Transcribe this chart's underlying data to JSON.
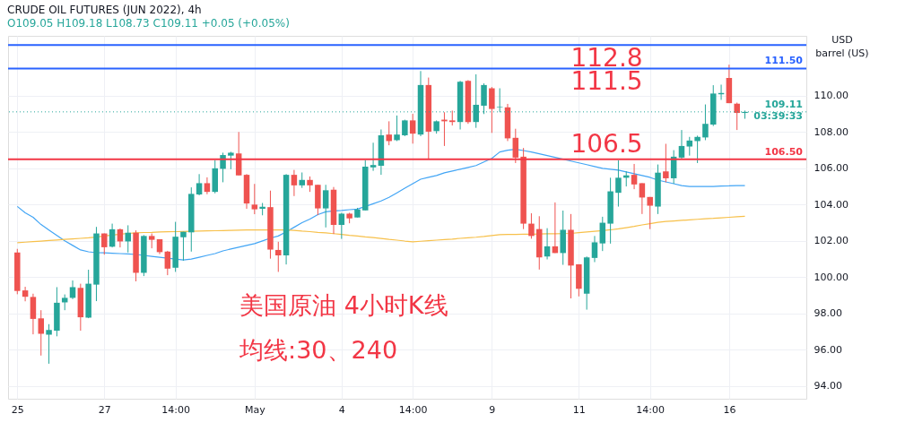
{
  "chart_data": {
    "type": "candlestick",
    "title": "CRUDE OIL FUTURES (JUN 2022), 4h",
    "subtitle": "O109.05 H109.18 L108.73 C109.11 +0.05 (+0.05%)",
    "ylabel": "USD\nbarrel (US)",
    "categories": [
      "25",
      null,
      null,
      null,
      null,
      null,
      null,
      null,
      null,
      null,
      null,
      "27",
      null,
      null,
      null,
      null,
      null,
      null,
      null,
      null,
      "14:00",
      null,
      null,
      null,
      null,
      null,
      null,
      null,
      null,
      null,
      "May",
      null,
      null,
      null,
      null,
      null,
      null,
      null,
      null,
      null,
      null,
      "4",
      null,
      null,
      null,
      null,
      null,
      null,
      null,
      null,
      "14:00",
      null,
      null,
      null,
      null,
      null,
      null,
      null,
      null,
      null,
      "9",
      null,
      null,
      null,
      null,
      null,
      null,
      null,
      null,
      null,
      null,
      "11",
      null,
      null,
      null,
      null,
      null,
      null,
      null,
      null,
      "14:00",
      null,
      null,
      null,
      null,
      null,
      null,
      null,
      null,
      null,
      "16",
      null,
      null
    ],
    "ohlc": [
      [
        101.36,
        101.56,
        99.06,
        99.24
      ],
      [
        99.27,
        99.47,
        98.67,
        98.92
      ],
      [
        98.91,
        99.09,
        96.85,
        97.7
      ],
      [
        97.73,
        98.18,
        95.68,
        96.88
      ],
      [
        96.83,
        97.41,
        95.23,
        97.09
      ],
      [
        97.05,
        99.45,
        96.74,
        98.59
      ],
      [
        98.61,
        99.05,
        98.18,
        98.86
      ],
      [
        98.86,
        99.82,
        98.79,
        99.45
      ],
      [
        99.41,
        99.64,
        97.05,
        97.79
      ],
      [
        97.77,
        100.41,
        97.74,
        99.64
      ],
      [
        99.59,
        102.77,
        98.68,
        102.41
      ],
      [
        102.41,
        102.41,
        101.24,
        101.65
      ],
      [
        101.68,
        102.95,
        101.64,
        102.64
      ],
      [
        102.64,
        102.68,
        101.64,
        101.97
      ],
      [
        101.97,
        102.86,
        101.36,
        102.45
      ],
      [
        102.45,
        102.58,
        99.77,
        100.24
      ],
      [
        100.24,
        102.32,
        100.06,
        102.27
      ],
      [
        102.27,
        102.41,
        101.59,
        102.06
      ],
      [
        102.09,
        102.09,
        101.27,
        101.38
      ],
      [
        101.41,
        101.45,
        100.11,
        100.47
      ],
      [
        100.52,
        103.05,
        100.29,
        102.23
      ],
      [
        102.2,
        102.5,
        100.91,
        102.5
      ],
      [
        102.47,
        104.95,
        101.41,
        104.59
      ],
      [
        104.56,
        105.68,
        104.51,
        105.18
      ],
      [
        105.18,
        105.5,
        104.57,
        104.7
      ],
      [
        104.7,
        106.45,
        104.62,
        106.0
      ],
      [
        105.97,
        106.86,
        105.23,
        106.73
      ],
      [
        106.7,
        106.91,
        105.95,
        106.86
      ],
      [
        106.82,
        108.0,
        105.61,
        105.61
      ],
      [
        105.64,
        105.68,
        103.77,
        104.06
      ],
      [
        104.0,
        105.14,
        103.47,
        103.74
      ],
      [
        103.77,
        104.09,
        103.41,
        103.88
      ],
      [
        103.86,
        104.77,
        101.02,
        101.52
      ],
      [
        101.5,
        101.95,
        100.29,
        101.2
      ],
      [
        101.2,
        105.68,
        100.7,
        105.64
      ],
      [
        105.64,
        105.91,
        104.47,
        105.06
      ],
      [
        105.06,
        105.77,
        104.92,
        105.36
      ],
      [
        105.36,
        105.55,
        104.7,
        105.06
      ],
      [
        105.09,
        105.09,
        103.42,
        103.79
      ],
      [
        103.79,
        105.09,
        102.74,
        104.79
      ],
      [
        104.82,
        104.97,
        102.38,
        102.88
      ],
      [
        102.88,
        103.55,
        102.11,
        103.5
      ],
      [
        103.5,
        103.55,
        102.97,
        103.24
      ],
      [
        103.29,
        103.82,
        103.29,
        103.73
      ],
      [
        103.68,
        106.45,
        103.68,
        106.09
      ],
      [
        106.05,
        107.41,
        105.86,
        106.18
      ],
      [
        106.14,
        108.14,
        105.64,
        107.82
      ],
      [
        107.86,
        108.59,
        107.27,
        107.5
      ],
      [
        107.55,
        108.91,
        107.5,
        107.86
      ],
      [
        107.82,
        108.68,
        107.77,
        108.64
      ],
      [
        108.64,
        109.0,
        107.36,
        107.91
      ],
      [
        107.86,
        111.36,
        107.77,
        110.59
      ],
      [
        110.59,
        111.0,
        106.52,
        108.02
      ],
      [
        108.05,
        108.64,
        107.91,
        108.59
      ],
      [
        108.68,
        109.09,
        107.23,
        108.59
      ],
      [
        108.64,
        109.18,
        108.36,
        108.55
      ],
      [
        108.55,
        110.82,
        108.14,
        110.77
      ],
      [
        110.82,
        110.86,
        108.45,
        108.55
      ],
      [
        108.55,
        111.18,
        108.23,
        109.5
      ],
      [
        109.45,
        110.68,
        108.99,
        110.59
      ],
      [
        110.41,
        110.48,
        107.95,
        109.27
      ],
      [
        109.36,
        110.41,
        109.09,
        109.39
      ],
      [
        109.36,
        109.55,
        107.5,
        107.65
      ],
      [
        107.68,
        108.18,
        106.29,
        106.59
      ],
      [
        106.64,
        107.12,
        102.65,
        102.95
      ],
      [
        102.95,
        103.52,
        102.12,
        102.27
      ],
      [
        102.65,
        103.36,
        100.42,
        101.09
      ],
      [
        101.14,
        102.7,
        100.98,
        101.7
      ],
      [
        101.7,
        104.12,
        101.33,
        101.33
      ],
      [
        101.33,
        103.67,
        100.68,
        102.61
      ],
      [
        102.61,
        103.48,
        98.83,
        100.64
      ],
      [
        100.71,
        100.71,
        98.94,
        99.36
      ],
      [
        99.09,
        101.14,
        98.21,
        101.09
      ],
      [
        101.06,
        102.27,
        100.83,
        101.92
      ],
      [
        101.86,
        103.33,
        101.44,
        103.0
      ],
      [
        102.95,
        105.48,
        101.85,
        104.73
      ],
      [
        104.65,
        106.44,
        103.89,
        105.48
      ],
      [
        105.48,
        105.83,
        105.0,
        105.61
      ],
      [
        105.64,
        106.24,
        104.85,
        105.11
      ],
      [
        105.18,
        105.18,
        103.48,
        104.39
      ],
      [
        104.42,
        104.42,
        102.65,
        103.94
      ],
      [
        103.89,
        106.21,
        103.48,
        105.76
      ],
      [
        105.83,
        107.35,
        105.23,
        105.45
      ],
      [
        105.45,
        107.0,
        105.15,
        106.64
      ],
      [
        106.59,
        108.11,
        106.49,
        107.23
      ],
      [
        107.2,
        107.73,
        106.7,
        107.53
      ],
      [
        107.5,
        107.8,
        106.29,
        107.73
      ],
      [
        107.7,
        109.52,
        107.55,
        108.45
      ],
      [
        108.41,
        110.58,
        108.33,
        110.12
      ],
      [
        110.08,
        110.61,
        109.77,
        110.15
      ],
      [
        110.98,
        111.71,
        109.59,
        109.59
      ],
      [
        109.56,
        109.62,
        108.11,
        109.05
      ],
      [
        109.05,
        109.18,
        108.73,
        109.11
      ]
    ],
    "colors": [
      "#ef5350",
      "#ef5350",
      "#ef5350",
      "#ef5350",
      "#26a69a",
      "#26a69a",
      "#26a69a",
      "#26a69a",
      "#ef5350",
      "#26a69a",
      "#26a69a",
      "#ef5350",
      "#26a69a",
      "#ef5350",
      "#26a69a",
      "#ef5350",
      "#26a69a",
      "#ef5350",
      "#ef5350",
      "#ef5350",
      "#26a69a",
      "#26a69a",
      "#26a69a",
      "#26a69a",
      "#ef5350",
      "#26a69a",
      "#26a69a",
      "#26a69a",
      "#ef5350",
      "#ef5350",
      "#ef5350",
      "#26a69a",
      "#ef5350",
      "#ef5350",
      "#26a69a",
      "#ef5350",
      "#26a69a",
      "#ef5350",
      "#ef5350",
      "#26a69a",
      "#ef5350",
      "#26a69a",
      "#ef5350",
      "#26a69a",
      "#26a69a",
      "#26a69a",
      "#26a69a",
      "#ef5350",
      "#26a69a",
      "#26a69a",
      "#ef5350",
      "#26a69a",
      "#ef5350",
      "#26a69a",
      "#ef5350",
      "#ef5350",
      "#26a69a",
      "#ef5350",
      "#26a69a",
      "#26a69a",
      "#ef5350",
      "#26a69a",
      "#ef5350",
      "#ef5350",
      "#ef5350",
      "#ef5350",
      "#ef5350",
      "#26a69a",
      "#ef5350",
      "#26a69a",
      "#ef5350",
      "#ef5350",
      "#26a69a",
      "#26a69a",
      "#26a69a",
      "#26a69a",
      "#26a69a",
      "#26a69a",
      "#ef5350",
      "#ef5350",
      "#ef5350",
      "#26a69a",
      "#ef5350",
      "#26a69a",
      "#26a69a",
      "#26a69a",
      "#26a69a",
      "#26a69a",
      "#26a69a",
      "#26a69a",
      "#ef5350",
      "#ef5350",
      "#26a69a"
    ],
    "series": [
      {
        "type": "line",
        "color": "#42a5f5",
        "line_style": "solid",
        "values": [
          103.9,
          103.55,
          103.3,
          102.9,
          102.6,
          102.3,
          102.0,
          101.75,
          101.5,
          101.4,
          101.35,
          101.34,
          101.32,
          101.3,
          101.28,
          101.25,
          101.2,
          101.15,
          101.1,
          101.05,
          101.0,
          100.95,
          101.0,
          101.1,
          101.2,
          101.3,
          101.45,
          101.55,
          101.65,
          101.75,
          101.85,
          102.0,
          102.15,
          102.27,
          102.5,
          102.75,
          103.0,
          103.2,
          103.45,
          103.6,
          103.65,
          103.68,
          103.72,
          103.75,
          103.9,
          104.05,
          104.2,
          104.4,
          104.65,
          104.9,
          105.15,
          105.4,
          105.5,
          105.6,
          105.75,
          105.85,
          105.95,
          106.05,
          106.15,
          106.35,
          106.55,
          106.9,
          107.0,
          107.05,
          106.98,
          106.9,
          106.8,
          106.7,
          106.6,
          106.5,
          106.4,
          106.3,
          106.2,
          106.1,
          106.0,
          105.95,
          105.9,
          105.8,
          105.7,
          105.6,
          105.5,
          105.35,
          105.25,
          105.15,
          105.05,
          105.0,
          105.0,
          105.0,
          105.0,
          105.02,
          105.03,
          105.05,
          105.05
        ]
      },
      {
        "type": "line",
        "color": "#f7c04a",
        "line_style": "solid",
        "values": [
          101.9,
          101.93,
          101.96,
          101.99,
          102.02,
          102.05,
          102.08,
          102.11,
          102.14,
          102.17,
          102.21,
          102.27,
          102.32,
          102.37,
          102.41,
          102.44,
          102.46,
          102.47,
          102.49,
          102.5,
          102.51,
          102.52,
          102.53,
          102.54,
          102.55,
          102.56,
          102.57,
          102.58,
          102.59,
          102.6,
          102.6,
          102.6,
          102.6,
          102.6,
          102.6,
          102.58,
          102.54,
          102.51,
          102.47,
          102.44,
          102.4,
          102.36,
          102.31,
          102.27,
          102.22,
          102.18,
          102.13,
          102.08,
          102.04,
          101.99,
          101.95,
          101.98,
          102.01,
          102.04,
          102.07,
          102.1,
          102.14,
          102.17,
          102.2,
          102.24,
          102.29,
          102.34,
          102.36,
          102.36,
          102.37,
          102.37,
          102.38,
          102.39,
          102.39,
          102.4,
          102.41,
          102.45,
          102.49,
          102.53,
          102.57,
          102.61,
          102.66,
          102.73,
          102.8,
          102.88,
          102.95,
          103.02,
          103.07,
          103.1,
          103.13,
          103.16,
          103.19,
          103.22,
          103.24,
          103.27,
          103.3,
          103.33,
          103.36
        ]
      }
    ],
    "ylim": [
      93.3,
      113.3
    ],
    "yticks": [
      {
        "value": 94,
        "label": "94.00"
      },
      {
        "value": 96,
        "label": "96.00"
      },
      {
        "value": 98,
        "label": "98.00"
      },
      {
        "value": 100,
        "label": "100.00"
      },
      {
        "value": 102,
        "label": "102.00"
      },
      {
        "value": 104,
        "label": "104.00"
      },
      {
        "value": 106,
        "label": "106.00"
      },
      {
        "value": 108,
        "label": "108.00"
      },
      {
        "value": 110,
        "label": "110.00"
      }
    ],
    "ref_lines": [
      {
        "axis": "y",
        "value": 112.8,
        "label": null,
        "color": "#2962ff"
      },
      {
        "axis": "y",
        "value": 111.5,
        "label": "111.50",
        "color": "#2962ff"
      },
      {
        "axis": "y",
        "value": 106.5,
        "label": "106.50",
        "color": "#f23645"
      },
      {
        "axis": "y",
        "value": 109.11,
        "label": "109.11\n03:39:33",
        "color": "#26a69a",
        "line_style": "dotted"
      }
    ],
    "annotations": [
      {
        "text": "112.8",
        "y": 112.8
      },
      {
        "text": "111.5",
        "y": 111.5
      },
      {
        "text": "106.5",
        "y": 106.5
      },
      "美国原油 4小时K线",
      "均线:30、240"
    ],
    "grid": true
  }
}
